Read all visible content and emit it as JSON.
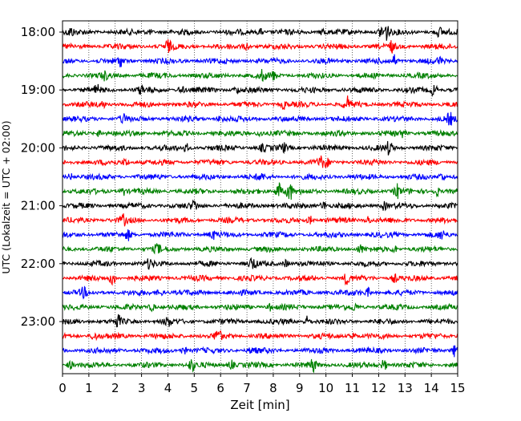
{
  "chart_data": {
    "type": "line",
    "xlabel": "Zeit  [min]",
    "ylabel": "UTC (Lokalzeit = UTC + 02:00)",
    "xlim": [
      0,
      15
    ],
    "x_ticks": [
      "0",
      "1",
      "2",
      "3",
      "4",
      "5",
      "6",
      "7",
      "8",
      "9",
      "10",
      "11",
      "12",
      "13",
      "14",
      "15"
    ],
    "y_ticks": [
      "18:00",
      "19:00",
      "20:00",
      "21:00",
      "22:00",
      "23:00"
    ],
    "grid_x": true,
    "series_colors": [
      "#000000",
      "#ff0000",
      "#0000ff",
      "#008000"
    ],
    "row_start": "18:00",
    "row_interval_min": 15,
    "rows": [
      {
        "color": "#000000",
        "spikes": [
          [
            0.3,
            0.5
          ],
          [
            3.3,
            0.3
          ],
          [
            7.5,
            0.4
          ],
          [
            9.9,
            0.5
          ],
          [
            12.1,
            0.8
          ],
          [
            12.3,
            1.0
          ],
          [
            14.3,
            0.5
          ]
        ]
      },
      {
        "color": "#ff0000",
        "spikes": [
          [
            4.0,
            0.8
          ],
          [
            7.0,
            0.4
          ],
          [
            12.5,
            0.6
          ]
        ]
      },
      {
        "color": "#0000ff",
        "spikes": [
          [
            2.2,
            0.6
          ],
          [
            12.6,
            0.7
          ],
          [
            14.3,
            0.4
          ]
        ]
      },
      {
        "color": "#008000",
        "spikes": [
          [
            1.6,
            0.4
          ],
          [
            7.6,
            0.6
          ],
          [
            8.0,
            0.5
          ]
        ]
      },
      {
        "color": "#000000",
        "spikes": [
          [
            1.3,
            0.5
          ],
          [
            3.0,
            0.5
          ],
          [
            4.5,
            0.5
          ],
          [
            6.6,
            0.4
          ],
          [
            14.1,
            0.8
          ]
        ]
      },
      {
        "color": "#ff0000",
        "spikes": [
          [
            1.5,
            0.5
          ],
          [
            8.4,
            0.5
          ],
          [
            10.8,
            0.9
          ]
        ]
      },
      {
        "color": "#0000ff",
        "spikes": [
          [
            2.3,
            0.5
          ],
          [
            6.0,
            0.4
          ],
          [
            14.7,
            0.7
          ]
        ]
      },
      {
        "color": "#008000",
        "spikes": [
          [
            1.4,
            0.4
          ],
          [
            7.5,
            0.4
          ],
          [
            12.9,
            0.4
          ]
        ]
      },
      {
        "color": "#000000",
        "spikes": [
          [
            4.7,
            0.5
          ],
          [
            7.6,
            0.4
          ],
          [
            8.4,
            0.5
          ],
          [
            12.4,
            0.8
          ]
        ]
      },
      {
        "color": "#ff0000",
        "spikes": [
          [
            2.4,
            0.5
          ],
          [
            9.8,
            0.6
          ],
          [
            10.0,
            0.5
          ]
        ]
      },
      {
        "color": "#0000ff",
        "spikes": [
          [
            0.3,
            0.4
          ],
          [
            7.5,
            0.4
          ],
          [
            14.4,
            0.6
          ]
        ]
      },
      {
        "color": "#008000",
        "spikes": [
          [
            2.3,
            0.5
          ],
          [
            8.2,
            1.3
          ],
          [
            8.6,
            1.5
          ],
          [
            12.7,
            0.9
          ],
          [
            14.2,
            0.6
          ]
        ]
      },
      {
        "color": "#000000",
        "spikes": [
          [
            5.0,
            0.6
          ],
          [
            9.9,
            0.6
          ],
          [
            12.2,
            0.5
          ]
        ]
      },
      {
        "color": "#ff0000",
        "spikes": [
          [
            2.3,
            0.6
          ],
          [
            9.4,
            0.5
          ],
          [
            11.6,
            0.5
          ]
        ]
      },
      {
        "color": "#0000ff",
        "spikes": [
          [
            2.5,
            0.6
          ],
          [
            5.7,
            0.5
          ],
          [
            14.4,
            0.5
          ]
        ]
      },
      {
        "color": "#008000",
        "spikes": [
          [
            3.6,
            0.6
          ],
          [
            11.3,
            0.5
          ],
          [
            12.6,
            0.4
          ]
        ]
      },
      {
        "color": "#000000",
        "spikes": [
          [
            3.3,
            0.5
          ],
          [
            7.2,
            0.8
          ],
          [
            8.5,
            0.5
          ]
        ]
      },
      {
        "color": "#ff0000",
        "spikes": [
          [
            1.9,
            0.9
          ],
          [
            10.8,
            0.8
          ],
          [
            12.6,
            0.5
          ]
        ]
      },
      {
        "color": "#0000ff",
        "spikes": [
          [
            0.8,
            0.5
          ],
          [
            3.7,
            0.5
          ],
          [
            11.6,
            0.5
          ]
        ]
      },
      {
        "color": "#008000",
        "spikes": [
          [
            3.4,
            0.5
          ],
          [
            7.9,
            0.4
          ],
          [
            11.1,
            0.4
          ]
        ]
      },
      {
        "color": "#000000",
        "spikes": [
          [
            2.1,
            0.7
          ],
          [
            4.0,
            0.5
          ],
          [
            9.3,
            0.7
          ]
        ]
      },
      {
        "color": "#ff0000",
        "spikes": [
          [
            1.2,
            0.5
          ],
          [
            5.9,
            0.9
          ],
          [
            11.0,
            0.5
          ]
        ]
      },
      {
        "color": "#0000ff",
        "spikes": [
          [
            4.6,
            0.5
          ],
          [
            7.2,
            0.4
          ],
          [
            14.9,
            0.8
          ]
        ]
      },
      {
        "color": "#008000",
        "spikes": [
          [
            0.3,
            0.5
          ],
          [
            4.9,
            0.7
          ],
          [
            6.4,
            0.6
          ],
          [
            9.5,
            0.8
          ],
          [
            12.2,
            0.7
          ]
        ]
      }
    ]
  }
}
